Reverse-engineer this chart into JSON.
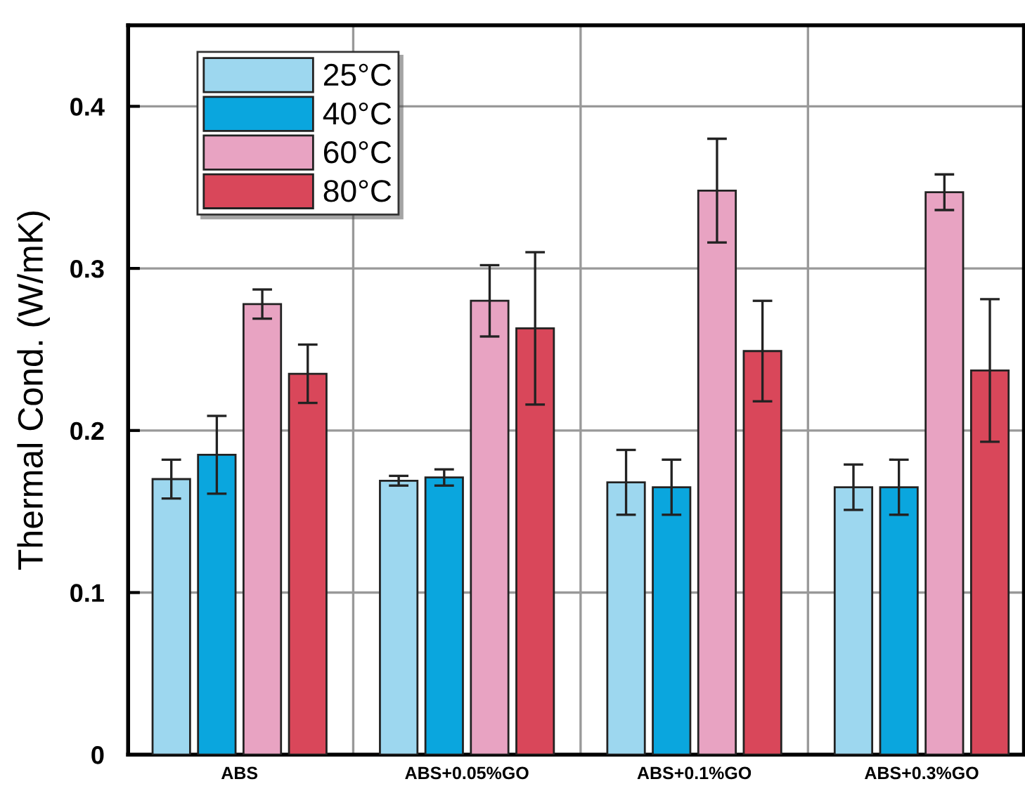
{
  "chart_data": {
    "type": "bar",
    "ylabel": "Thermal Cond. (W/mK)",
    "categories": [
      "ABS",
      "ABS+0.05%GO",
      "ABS+0.1%GO",
      "ABS+0.3%GO"
    ],
    "series": [
      {
        "name": "25°C",
        "color": "#9dd7ef",
        "values": [
          0.17,
          0.169,
          0.168,
          0.165
        ],
        "errors": [
          0.012,
          0.003,
          0.02,
          0.014
        ]
      },
      {
        "name": "40°C",
        "color": "#0aa6de",
        "values": [
          0.185,
          0.171,
          0.165,
          0.165
        ],
        "errors": [
          0.024,
          0.005,
          0.017,
          0.017
        ]
      },
      {
        "name": "60°C",
        "color": "#e8a3c2",
        "values": [
          0.278,
          0.28,
          0.348,
          0.347
        ],
        "errors": [
          0.009,
          0.022,
          0.032,
          0.011
        ]
      },
      {
        "name": "80°C",
        "color": "#d9475a",
        "values": [
          0.235,
          0.263,
          0.249,
          0.237
        ],
        "errors": [
          0.018,
          0.047,
          0.031,
          0.044
        ]
      }
    ],
    "ylim": [
      0,
      0.45
    ],
    "yticks": [
      0,
      0.1,
      0.2,
      0.3,
      0.4
    ],
    "grid": "y",
    "legend": "top left"
  }
}
